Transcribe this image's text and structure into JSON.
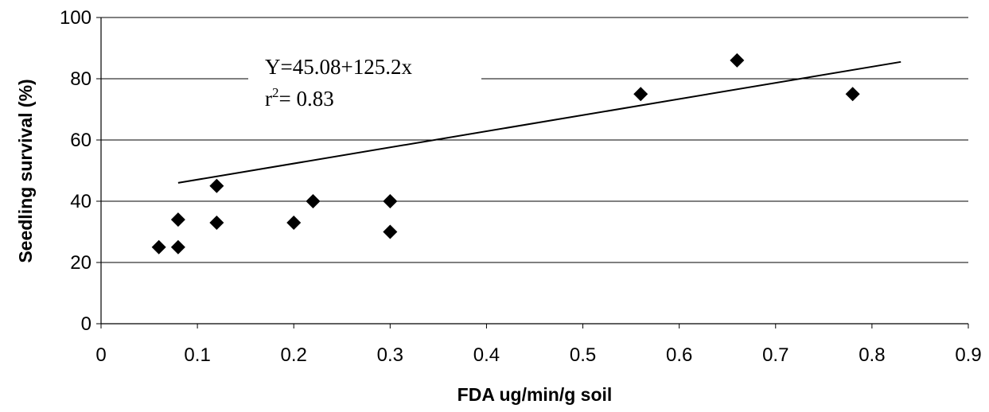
{
  "chart_data": {
    "type": "scatter",
    "xlabel": "FDA ug/min/g soil",
    "ylabel": "Seedling survival (%)",
    "xlim": [
      0,
      0.9
    ],
    "ylim": [
      0,
      100
    ],
    "x_ticks": [
      "0",
      "0.1",
      "0.2",
      "0.3",
      "0.4",
      "0.5",
      "0.6",
      "0.7",
      "0.8",
      "0.9"
    ],
    "y_ticks": [
      "0",
      "20",
      "40",
      "60",
      "80",
      "100"
    ],
    "x_tick_values": [
      0,
      0.1,
      0.2,
      0.3,
      0.4,
      0.5,
      0.6,
      0.7,
      0.8,
      0.9
    ],
    "y_tick_values": [
      0,
      20,
      40,
      60,
      80,
      100
    ],
    "gridlines": "horizontal",
    "marker": "diamond",
    "marker_color": "#000000",
    "points": [
      {
        "x": 0.06,
        "y": 25
      },
      {
        "x": 0.08,
        "y": 25
      },
      {
        "x": 0.08,
        "y": 34
      },
      {
        "x": 0.12,
        "y": 33
      },
      {
        "x": 0.12,
        "y": 45
      },
      {
        "x": 0.2,
        "y": 33
      },
      {
        "x": 0.22,
        "y": 40
      },
      {
        "x": 0.3,
        "y": 40
      },
      {
        "x": 0.3,
        "y": 30
      },
      {
        "x": 0.56,
        "y": 75
      },
      {
        "x": 0.66,
        "y": 86
      },
      {
        "x": 0.78,
        "y": 75
      }
    ],
    "trendline": {
      "intercept": 45.08,
      "slope": 125.2,
      "x_range": [
        0.08,
        0.83
      ]
    },
    "equation": {
      "line1": "Y=45.08+125.2x",
      "r_label": "r",
      "r_sup": "2",
      "r_value": "= 0.83"
    }
  }
}
